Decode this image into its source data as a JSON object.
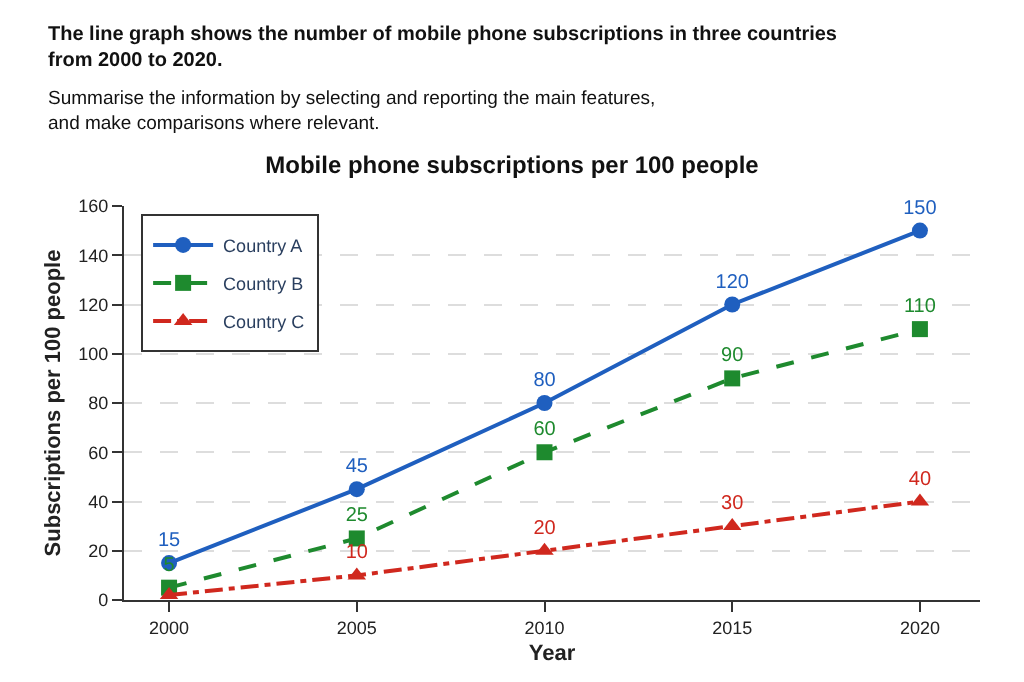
{
  "chart_data": {
    "type": "line",
    "title": "Mobile phone subscriptions per 100 people",
    "xlabel": "Year",
    "ylabel": "Subscriptions per 100 people",
    "annotations": [
      "The line graph shows the number of mobile phone subscriptions in three countries\nfrom 2000 to 2020.",
      "Summarise the information by selecting and reporting the main features,\nand make comparisons where relevant."
    ],
    "x": [
      2000,
      2005,
      2010,
      2015,
      2020
    ],
    "xlim": [
      1998.8,
      2021.6
    ],
    "xticks": [
      2000,
      2005,
      2010,
      2015,
      2020
    ],
    "ylim": [
      0,
      160
    ],
    "yticks": [
      0,
      20,
      40,
      60,
      80,
      100,
      120,
      140,
      160
    ],
    "grid": "y",
    "legend": "top left",
    "series": [
      {
        "name": "Country A",
        "color": "#1f5fbf",
        "values": [
          15,
          45,
          80,
          120,
          150
        ],
        "marker": "circle",
        "line_style": "solid",
        "value_labels": [
          "15",
          "45",
          "80",
          "120",
          "150"
        ]
      },
      {
        "name": "Country B",
        "color": "#1e8a2e",
        "values": [
          5,
          25,
          60,
          90,
          110
        ],
        "marker": "square",
        "line_style": "dashed",
        "value_labels": [
          "5",
          "25",
          "60",
          "90",
          "110"
        ]
      },
      {
        "name": "Country C",
        "color": "#d0281e",
        "values": [
          2,
          10,
          20,
          30,
          40
        ],
        "marker": "triangle",
        "line_style": "dashdot",
        "value_labels": [
          null,
          "10",
          "20",
          "30",
          "40"
        ]
      }
    ]
  }
}
